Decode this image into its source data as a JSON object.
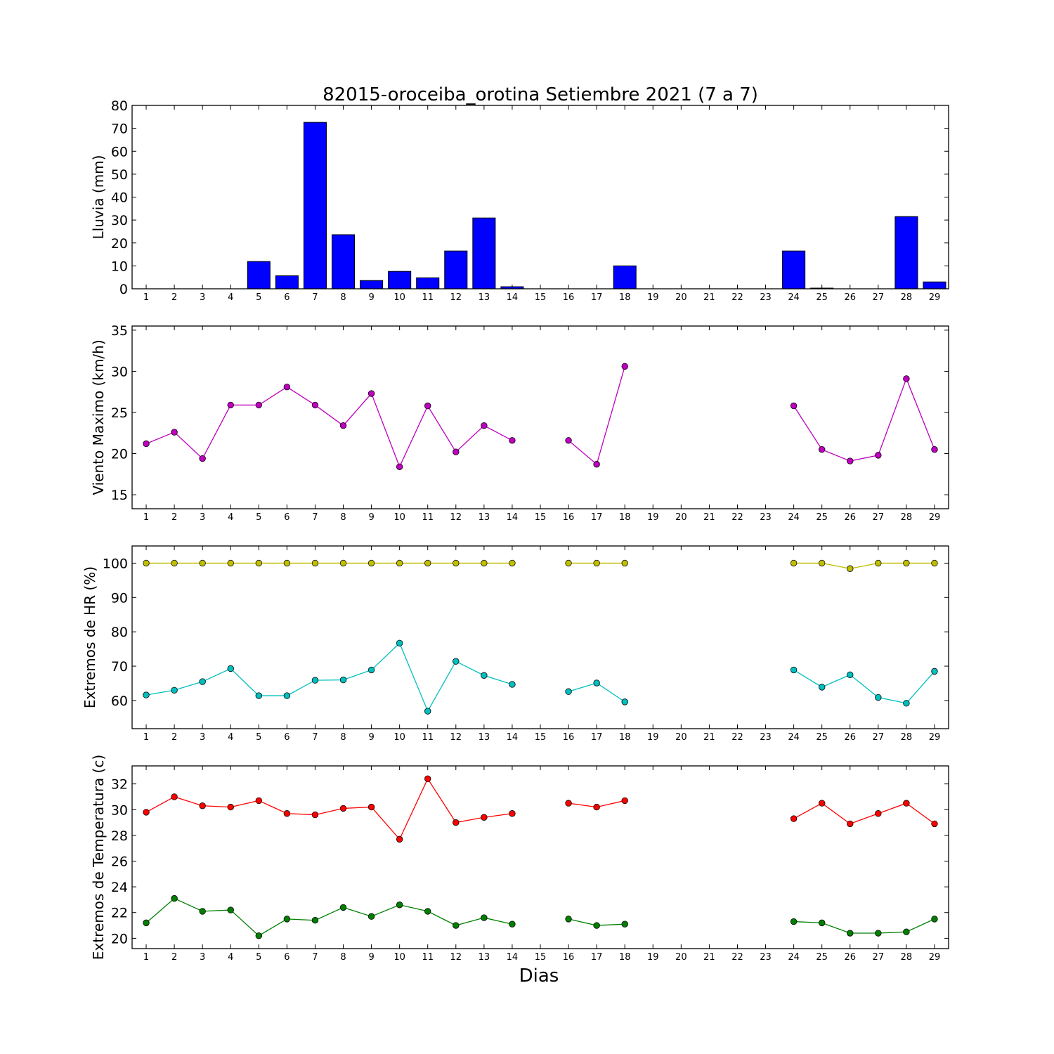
{
  "title": "82015-oroceiba_orotina Setiembre 2021  (7 a 7)",
  "xlabel": "Dias",
  "days": [
    1,
    2,
    3,
    4,
    5,
    6,
    7,
    8,
    9,
    10,
    11,
    12,
    13,
    14,
    15,
    16,
    17,
    18,
    19,
    20,
    21,
    22,
    23,
    24,
    25,
    26,
    27,
    28,
    29
  ],
  "chart_data": [
    {
      "type": "bar",
      "ylabel": "Lluvia (mm)",
      "ylim": [
        0,
        80
      ],
      "yticks": [
        0,
        10,
        20,
        30,
        40,
        50,
        60,
        70,
        80
      ],
      "series": [
        {
          "color": "#0000ff",
          "values": [
            0,
            0,
            0,
            0,
            11.9,
            5.7,
            72.6,
            23.6,
            3.6,
            7.6,
            4.8,
            16.5,
            30.9,
            0.9,
            0,
            0,
            0,
            10.0,
            null,
            null,
            null,
            null,
            null,
            16.5,
            0.3,
            0,
            0,
            31.5,
            3.0
          ]
        }
      ]
    },
    {
      "type": "line",
      "ylabel": "Viento Maximo (km/h)",
      "ylim": [
        13.3,
        35.5
      ],
      "yticks": [
        15,
        20,
        25,
        30,
        35
      ],
      "series": [
        {
          "color": "#bf00bf",
          "values": [
            21.2,
            22.6,
            19.4,
            25.9,
            25.9,
            28.1,
            25.9,
            23.4,
            27.3,
            18.4,
            25.8,
            20.2,
            23.4,
            21.6,
            null,
            21.6,
            18.7,
            30.6,
            null,
            null,
            null,
            null,
            null,
            25.8,
            20.5,
            19.1,
            19.8,
            29.1,
            20.5
          ]
        }
      ]
    },
    {
      "type": "line",
      "ylabel": "Extremos de HR (%)",
      "ylim": [
        51.8,
        105
      ],
      "yticks": [
        60,
        70,
        80,
        90,
        100
      ],
      "series": [
        {
          "color": "#bfbf00",
          "values": [
            100,
            100,
            100,
            100,
            100,
            100,
            100,
            100,
            100,
            100,
            100,
            100,
            100,
            100,
            null,
            100,
            100,
            100,
            null,
            null,
            null,
            null,
            null,
            100,
            100,
            98.4,
            100,
            100,
            100
          ]
        },
        {
          "color": "#00bfbf",
          "values": [
            61.6,
            63.0,
            65.5,
            69.3,
            61.4,
            61.4,
            65.9,
            66.0,
            68.9,
            76.7,
            56.9,
            71.4,
            67.3,
            64.7,
            null,
            62.6,
            65.1,
            59.6,
            null,
            null,
            null,
            null,
            null,
            68.9,
            63.9,
            67.5,
            60.9,
            59.2,
            68.5
          ]
        }
      ]
    },
    {
      "type": "line",
      "ylabel": "Extremos de Temperatura (c)",
      "ylim": [
        19.2,
        33.4
      ],
      "yticks": [
        20,
        22,
        24,
        26,
        28,
        30,
        32
      ],
      "series": [
        {
          "color": "#ff0000",
          "values": [
            29.8,
            31.0,
            30.3,
            30.2,
            30.7,
            29.7,
            29.6,
            30.1,
            30.2,
            27.7,
            32.4,
            29.0,
            29.4,
            29.7,
            null,
            30.5,
            30.2,
            30.7,
            null,
            null,
            null,
            null,
            null,
            29.3,
            30.5,
            28.9,
            29.7,
            30.5,
            28.9
          ]
        },
        {
          "color": "#008000",
          "values": [
            21.2,
            23.1,
            22.1,
            22.2,
            20.2,
            21.5,
            21.4,
            22.4,
            21.7,
            22.6,
            22.1,
            21.0,
            21.6,
            21.1,
            null,
            21.5,
            21.0,
            21.1,
            null,
            null,
            null,
            null,
            null,
            21.3,
            21.2,
            20.4,
            20.4,
            20.5,
            21.5
          ]
        }
      ]
    }
  ]
}
